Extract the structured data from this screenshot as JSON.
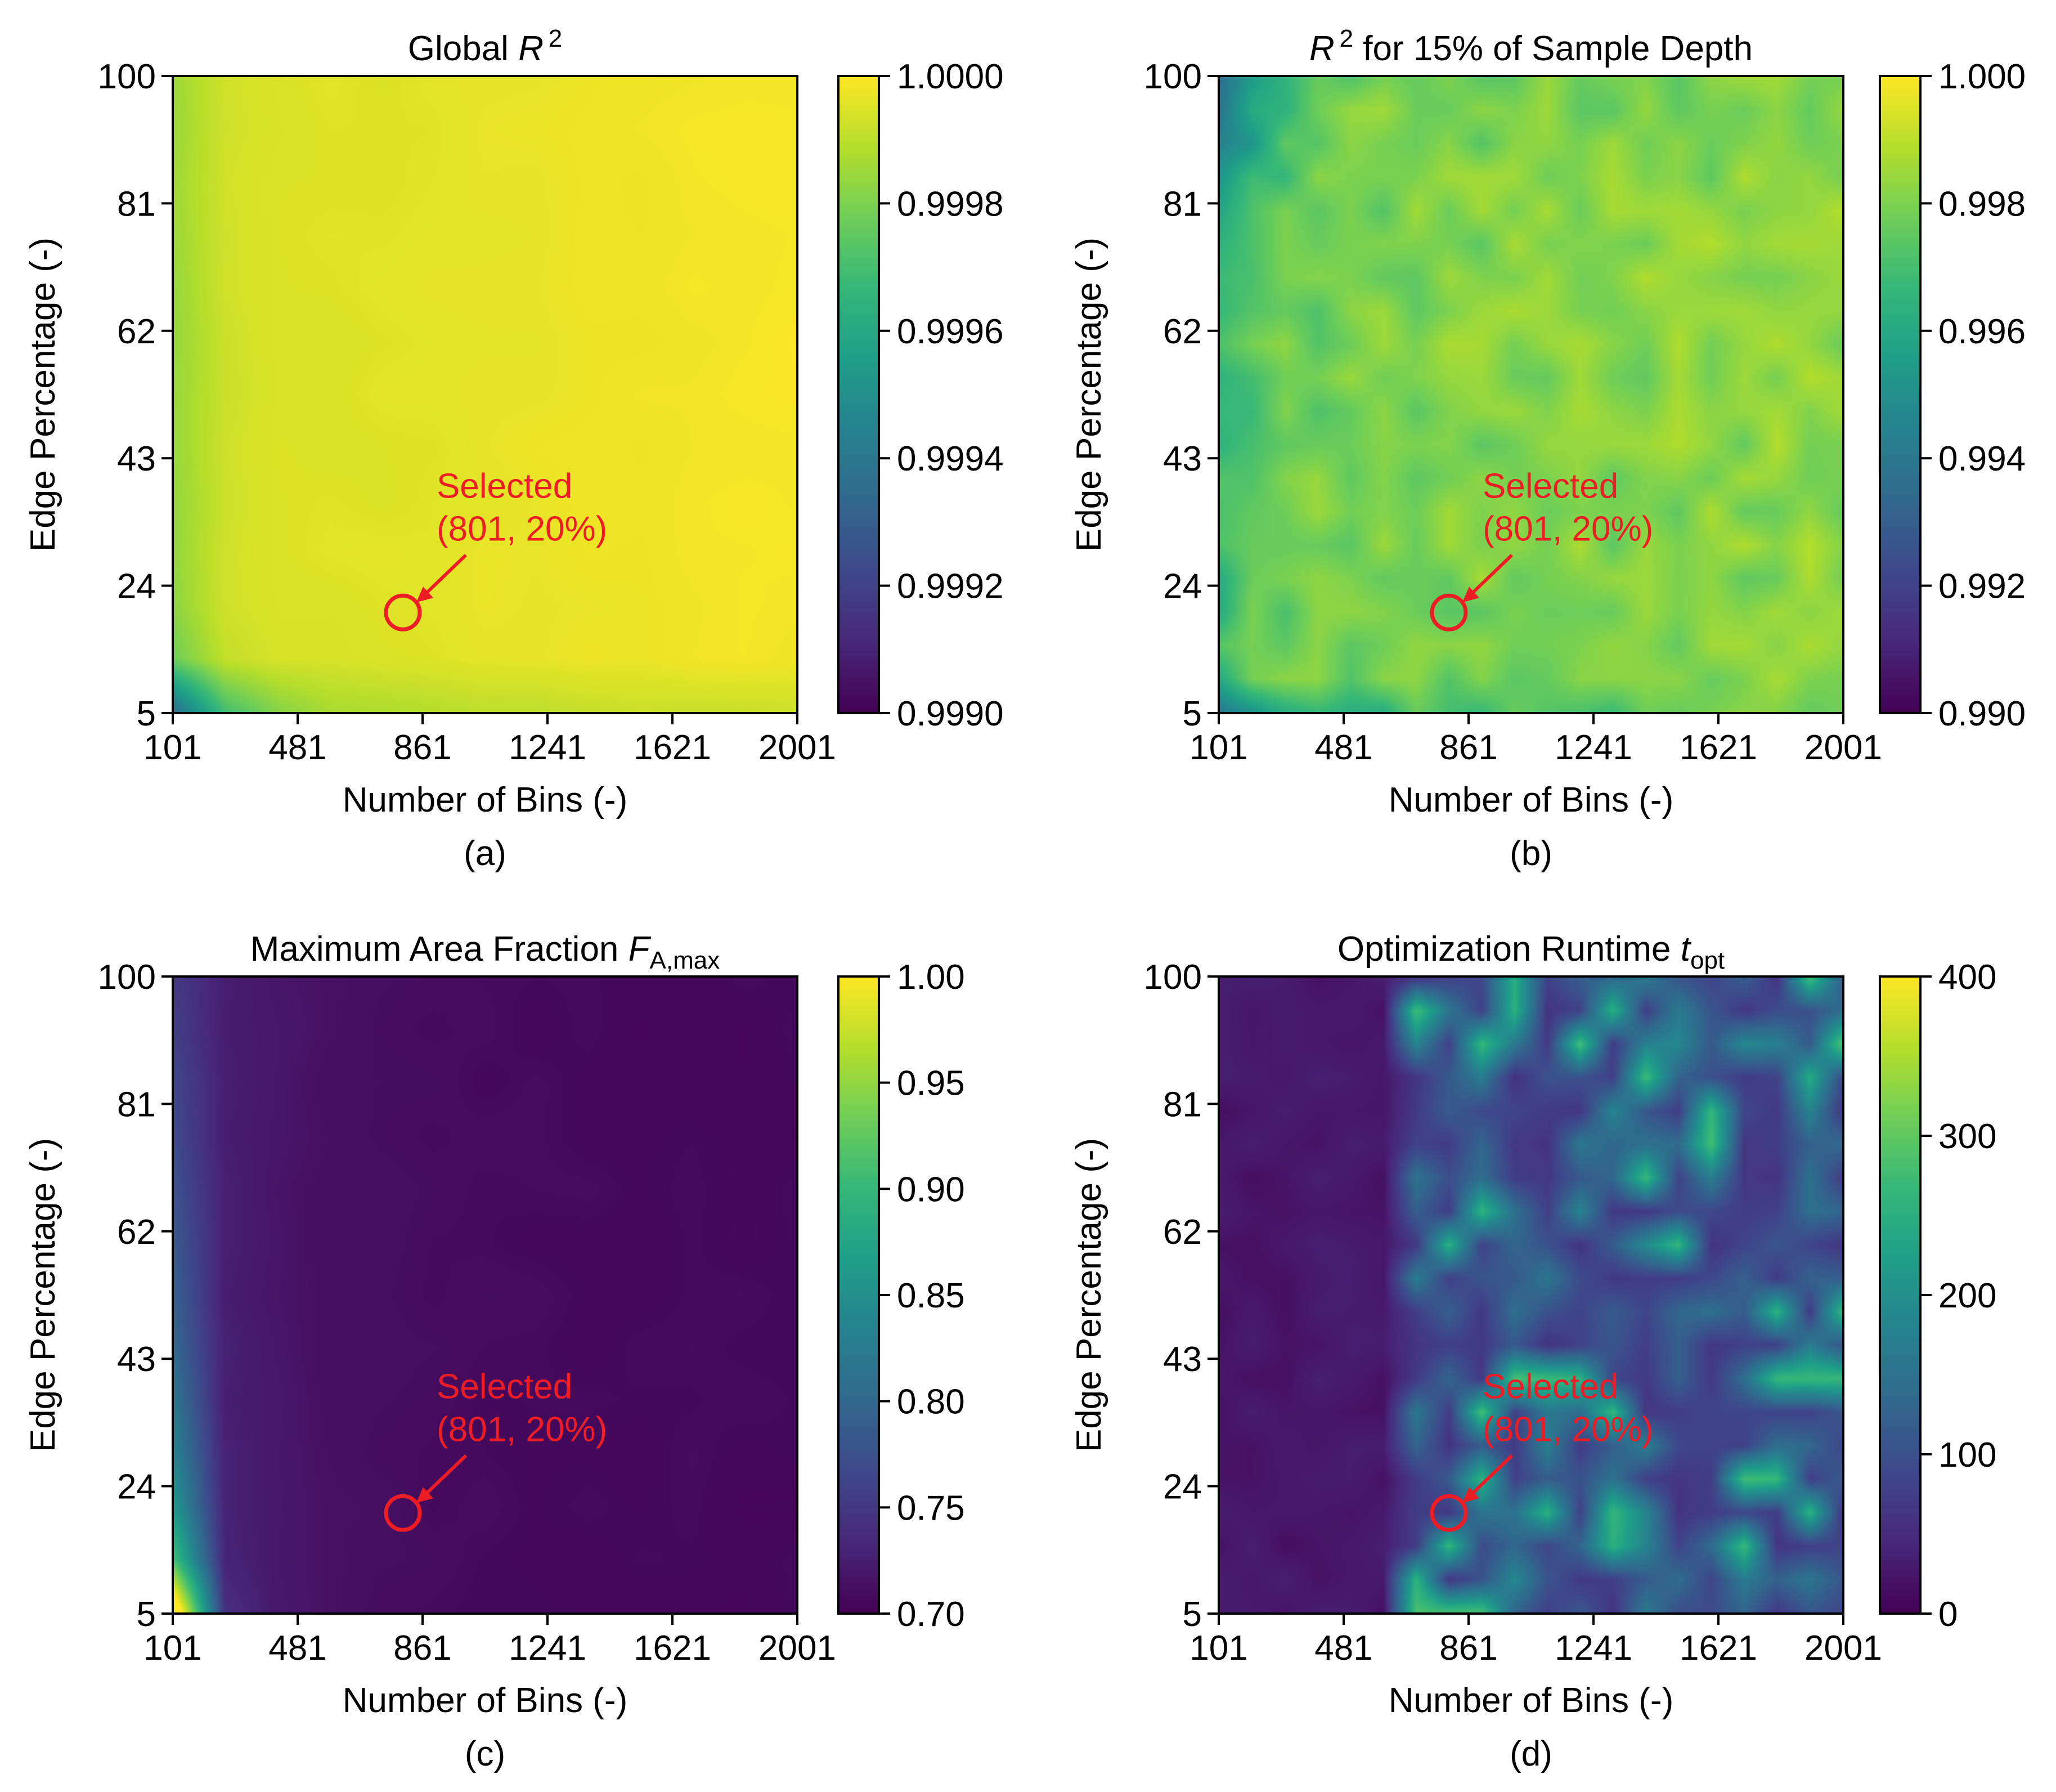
{
  "chart_data": [
    {
      "type": "heatmap",
      "panel_id": "a",
      "title": {
        "main": "Global ",
        "math": "R",
        "sup": "2",
        "sub": "",
        "after": ""
      },
      "caption": "(a)",
      "xlabel": "Number of Bins (-)",
      "ylabel": "Edge Percentage (-)",
      "xlim": [
        101,
        2001
      ],
      "ylim": [
        5,
        100
      ],
      "xticks": [
        "101",
        "481",
        "861",
        "1241",
        "1621",
        "2001"
      ],
      "yticks": [
        "5",
        "24",
        "43",
        "62",
        "81",
        "100"
      ],
      "colorbar": {
        "min": 0.999,
        "max": 1.0,
        "ticks": [
          "0.9990",
          "0.9992",
          "0.9994",
          "0.9996",
          "0.9998",
          "1.0000"
        ]
      },
      "field": "global",
      "annotation": {
        "line1": "Selected",
        "line2": "(801, 20%)",
        "x": 801,
        "y": 20
      }
    },
    {
      "type": "heatmap",
      "panel_id": "b",
      "title": {
        "main": "",
        "math": "R",
        "sup": "2",
        "sub": "",
        "after": " for 15% of Sample Depth"
      },
      "caption": "(b)",
      "xlabel": "Number of Bins (-)",
      "ylabel": "Edge Percentage (-)",
      "xlim": [
        101,
        2001
      ],
      "ylim": [
        5,
        100
      ],
      "xticks": [
        "101",
        "481",
        "861",
        "1241",
        "1621",
        "2001"
      ],
      "yticks": [
        "5",
        "24",
        "43",
        "62",
        "81",
        "100"
      ],
      "colorbar": {
        "min": 0.99,
        "max": 1.0,
        "ticks": [
          "0.990",
          "0.992",
          "0.994",
          "0.996",
          "0.998",
          "1.000"
        ]
      },
      "field": "depth",
      "annotation": {
        "line1": "Selected",
        "line2": "(801, 20%)",
        "x": 801,
        "y": 20
      }
    },
    {
      "type": "heatmap",
      "panel_id": "c",
      "title": {
        "main": "Maximum Area Fraction ",
        "math": "F",
        "sup": "",
        "sub": "A,max",
        "after": ""
      },
      "caption": "(c)",
      "xlabel": "Number of Bins (-)",
      "ylabel": "Edge Percentage (-)",
      "xlim": [
        101,
        2001
      ],
      "ylim": [
        5,
        100
      ],
      "xticks": [
        "101",
        "481",
        "861",
        "1241",
        "1621",
        "2001"
      ],
      "yticks": [
        "5",
        "24",
        "43",
        "62",
        "81",
        "100"
      ],
      "colorbar": {
        "min": 0.7,
        "max": 1.0,
        "ticks": [
          "0.70",
          "0.75",
          "0.80",
          "0.85",
          "0.90",
          "0.95",
          "1.00"
        ]
      },
      "field": "area",
      "annotation": {
        "line1": "Selected",
        "line2": "(801, 20%)",
        "x": 801,
        "y": 20
      }
    },
    {
      "type": "heatmap",
      "panel_id": "d",
      "title": {
        "main": "Optimization Runtime ",
        "math": "t",
        "sup": "",
        "sub": "opt",
        "after": ""
      },
      "caption": "(d)",
      "xlabel": "Number of Bins (-)",
      "ylabel": "Edge Percentage (-)",
      "xlim": [
        101,
        2001
      ],
      "ylim": [
        5,
        100
      ],
      "xticks": [
        "101",
        "481",
        "861",
        "1241",
        "1621",
        "2001"
      ],
      "yticks": [
        "5",
        "24",
        "43",
        "62",
        "81",
        "100"
      ],
      "colorbar": {
        "min": 0,
        "max": 400,
        "ticks": [
          "0",
          "100",
          "200",
          "300",
          "400"
        ]
      },
      "field": "runtime",
      "annotation": {
        "line1": "Selected",
        "line2": "(801, 20%)",
        "x": 801,
        "y": 20
      }
    }
  ],
  "colors": {
    "annotation": "#ee1c25",
    "axis": "#000000",
    "viridis": [
      "#440154",
      "#482878",
      "#3e4989",
      "#31688e",
      "#26828e",
      "#1f9e89",
      "#35b779",
      "#6ece58",
      "#b5de2b",
      "#fde725"
    ]
  }
}
